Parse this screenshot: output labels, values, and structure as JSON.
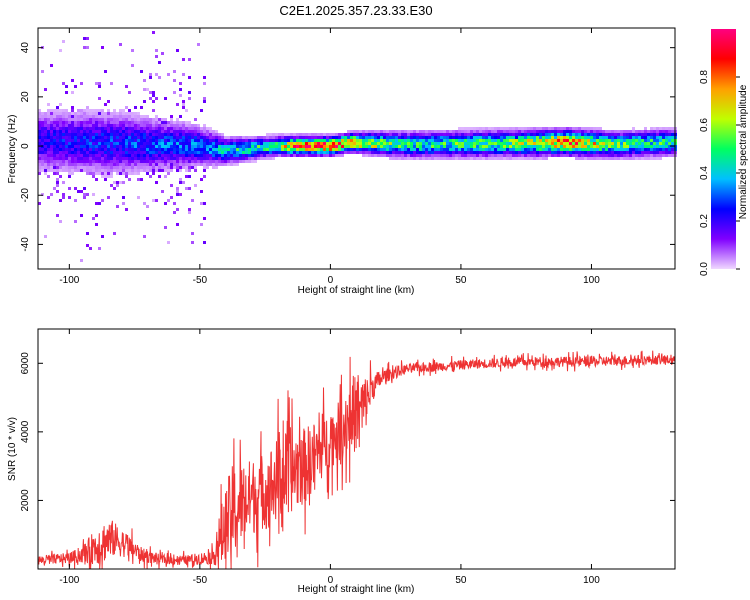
{
  "chart_data": [
    {
      "type": "heatmap",
      "title": "C2E1.2025.357.23.33.E30",
      "xlabel": "Height of straight line (km)",
      "ylabel": "Frequency (Hz)",
      "xlim": [
        -112,
        132
      ],
      "ylim": [
        -50,
        48
      ],
      "xticks": [
        -100,
        -50,
        0,
        50,
        100
      ],
      "yticks": [
        -40,
        -20,
        0,
        20,
        40
      ],
      "xtick_labels": [
        "-100",
        "-50",
        "0",
        "50",
        "100"
      ],
      "ytick_labels": [
        "-40",
        "-20",
        "0",
        "20",
        "40"
      ],
      "colorbar": {
        "label": "Normalized spectral amplitude",
        "range": [
          0,
          1
        ],
        "ticks": [
          0.0,
          0.2,
          0.4,
          0.6,
          0.8
        ],
        "tick_labels": [
          "0.0",
          "0.2",
          "0.4",
          "0.6",
          "0.8"
        ],
        "colors": [
          "#f0d8ff",
          "#8000ff",
          "#0000ff",
          "#00c0ff",
          "#00ff60",
          "#c0ff00",
          "#ffa000",
          "#ff0000",
          "#ff0080"
        ]
      },
      "ridge": [
        {
          "x": -110,
          "center_hz": 2,
          "width_hz": 9,
          "amp": 0.25
        },
        {
          "x": -80,
          "center_hz": 1,
          "width_hz": 9,
          "amp": 0.3
        },
        {
          "x": -50,
          "center_hz": 0,
          "width_hz": 6,
          "amp": 0.35
        },
        {
          "x": -40,
          "center_hz": -2,
          "width_hz": 4,
          "amp": 0.45
        },
        {
          "x": -20,
          "center_hz": 0,
          "width_hz": 3,
          "amp": 0.55
        },
        {
          "x": -15,
          "center_hz": 0,
          "width_hz": 3,
          "amp": 0.85
        },
        {
          "x": 0,
          "center_hz": 0,
          "width_hz": 3,
          "amp": 0.95
        },
        {
          "x": 8,
          "center_hz": 1.5,
          "width_hz": 3,
          "amp": 0.85
        },
        {
          "x": 30,
          "center_hz": 0.5,
          "width_hz": 4,
          "amp": 0.5
        },
        {
          "x": 70,
          "center_hz": 1,
          "width_hz": 4,
          "amp": 0.6
        },
        {
          "x": 90,
          "center_hz": 1.5,
          "width_hz": 4,
          "amp": 0.9
        },
        {
          "x": 110,
          "center_hz": 0.5,
          "width_hz": 4,
          "amp": 0.55
        },
        {
          "x": 132,
          "center_hz": 1.5,
          "width_hz": 4,
          "amp": 0.5
        }
      ],
      "grid": false
    },
    {
      "type": "line",
      "xlabel": "Height of straight line (km)",
      "ylabel": "SNR (10 * v/v)",
      "xlim": [
        -112,
        132
      ],
      "ylim": [
        0,
        7000
      ],
      "xticks": [
        -100,
        -50,
        0,
        50,
        100
      ],
      "yticks": [
        2000,
        4000,
        6000
      ],
      "xtick_labels": [
        "-100",
        "-50",
        "0",
        "50",
        "100"
      ],
      "ytick_labels": [
        "2000",
        "4000",
        "6000"
      ],
      "color": "#ee3333",
      "envelope": {
        "x": [
          -112,
          -100,
          -95,
          -88,
          -84,
          -78,
          -72,
          -65,
          -55,
          -45,
          -42,
          -38,
          -35,
          -30,
          -25,
          -20,
          -15,
          -10,
          -5,
          0,
          5,
          8,
          12,
          16,
          20,
          25,
          30,
          40,
          60,
          80,
          100,
          120,
          132
        ],
        "mean": [
          250,
          320,
          420,
          750,
          900,
          700,
          400,
          280,
          260,
          350,
          900,
          1600,
          1900,
          2100,
          2300,
          2600,
          2900,
          3000,
          3400,
          3800,
          4100,
          4500,
          4600,
          5300,
          5600,
          5750,
          5850,
          5900,
          6000,
          6050,
          6050,
          6100,
          6100
        ],
        "spread": [
          200,
          220,
          350,
          900,
          800,
          500,
          300,
          200,
          200,
          300,
          1300,
          2000,
          1800,
          1600,
          1600,
          1800,
          1800,
          1600,
          1400,
          1200,
          1300,
          1700,
          1500,
          600,
          300,
          250,
          200,
          200,
          200,
          200,
          220,
          200,
          200
        ]
      },
      "grid": false
    }
  ]
}
